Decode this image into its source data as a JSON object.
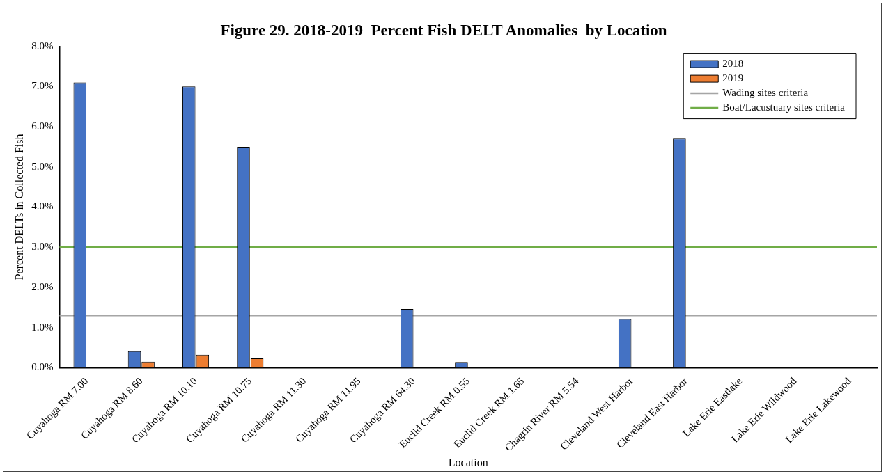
{
  "chart_data": {
    "type": "bar",
    "title": "Figure 29. 2018-2019  Percent Fish DELT Anomalies  by Location",
    "xlabel": "Location",
    "ylabel": "Percent DELTs in Collected Fish",
    "categories": [
      "Cuyahoga RM 7.00",
      "Cuyahoga RM 8.60",
      "Cuyahoga RM 10.10",
      "Cuyahoga RM 10.75",
      "Cuyahoga RM 11.30",
      "Cuyahoga RM 11.95",
      "Cuyahoga RM 64.30",
      "Euclid Creek RM 0.55",
      "Euclid Creek RM 1.65",
      "Chagrin River RM 5.54",
      "Cleveland West Harbor",
      "Cleveland East Harbor",
      "Lake Erie Eastlake",
      "Lake Erie Wildwood",
      "Lake Erie Lakewood"
    ],
    "series": [
      {
        "name": "2018",
        "color": "#4472c4",
        "values": [
          7.1,
          0.41,
          7.0,
          5.5,
          0,
          0,
          1.46,
          0.14,
          0,
          0,
          1.21,
          5.7,
          0,
          0,
          0
        ]
      },
      {
        "name": "2019",
        "color": "#ed7d31",
        "values": [
          0,
          0.15,
          0.32,
          0.23,
          0,
          0,
          0,
          0,
          0,
          0,
          0,
          0,
          0,
          0,
          0
        ]
      }
    ],
    "ylim": [
      0,
      8
    ],
    "yticks": [
      {
        "value": 0,
        "label": "0.0%"
      },
      {
        "value": 1,
        "label": "1.0%"
      },
      {
        "value": 2,
        "label": "2.0%"
      },
      {
        "value": 3,
        "label": "3.0%"
      },
      {
        "value": 4,
        "label": "4.0%"
      },
      {
        "value": 5,
        "label": "5.0%"
      },
      {
        "value": 6,
        "label": "6.0%"
      },
      {
        "value": 7,
        "label": "7.0%"
      },
      {
        "value": 8,
        "label": "8.0%"
      }
    ],
    "ref_lines": [
      {
        "axis": "y",
        "value": 1.3,
        "label": "Wading sites criteria",
        "color": "#a5a5a5"
      },
      {
        "axis": "y",
        "value": 3.0,
        "label": "Boat/Lacustuary sites criteria",
        "color": "#70ad47"
      }
    ],
    "grid": false,
    "legend": "top right"
  }
}
